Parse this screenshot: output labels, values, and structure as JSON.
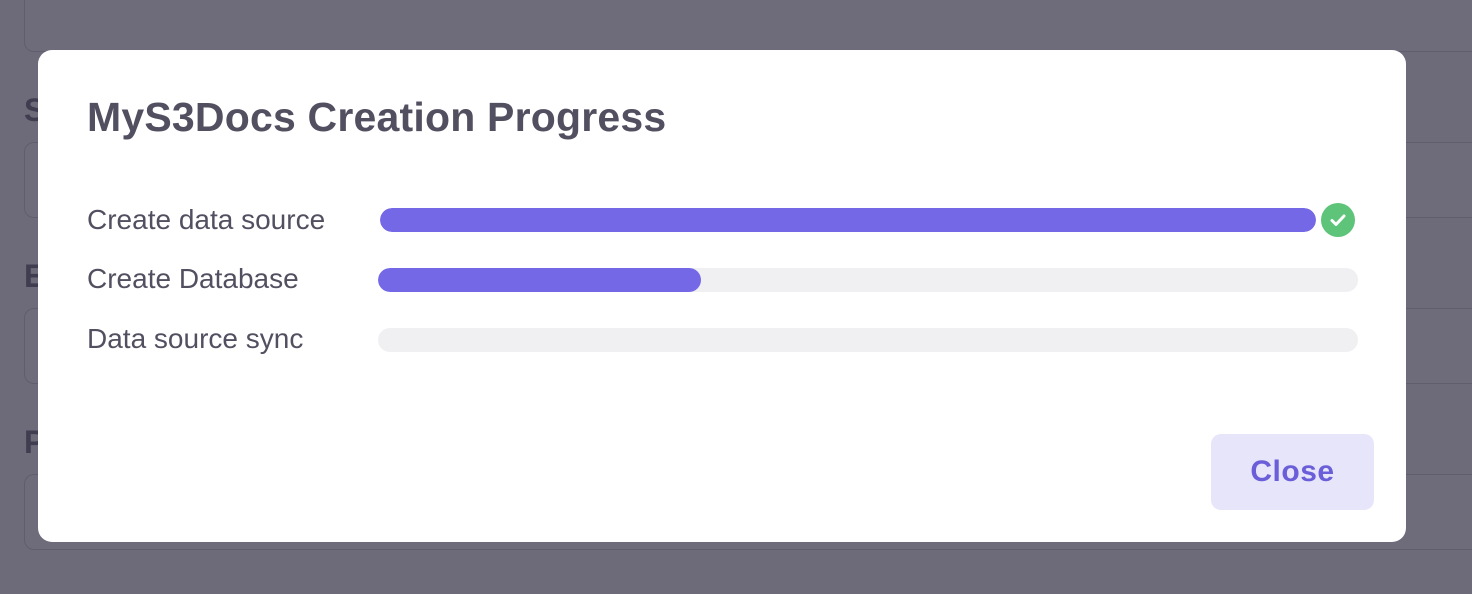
{
  "background_form": {
    "password_mask": "••••••••••••••••••••••",
    "label_1": "S",
    "label_2": "E",
    "label_3": "P"
  },
  "modal": {
    "title": "MyS3Docs Creation Progress",
    "steps": [
      {
        "label": "Create data source",
        "progress_percent": 100,
        "status": "complete",
        "status_icon": "check-circle-icon"
      },
      {
        "label": "Create Database",
        "progress_percent": 33,
        "status": "in-progress"
      },
      {
        "label": "Data source sync",
        "progress_percent": 0,
        "status": "pending"
      }
    ],
    "close_label": "Close"
  },
  "colors": {
    "progress_fill": "#7468e6",
    "progress_track": "#f0f0f2",
    "success": "#5dc47a",
    "button_bg": "#e7e5fa",
    "button_text": "#6b5fd9",
    "overlay": "rgba(60,56,76,0.74)"
  }
}
